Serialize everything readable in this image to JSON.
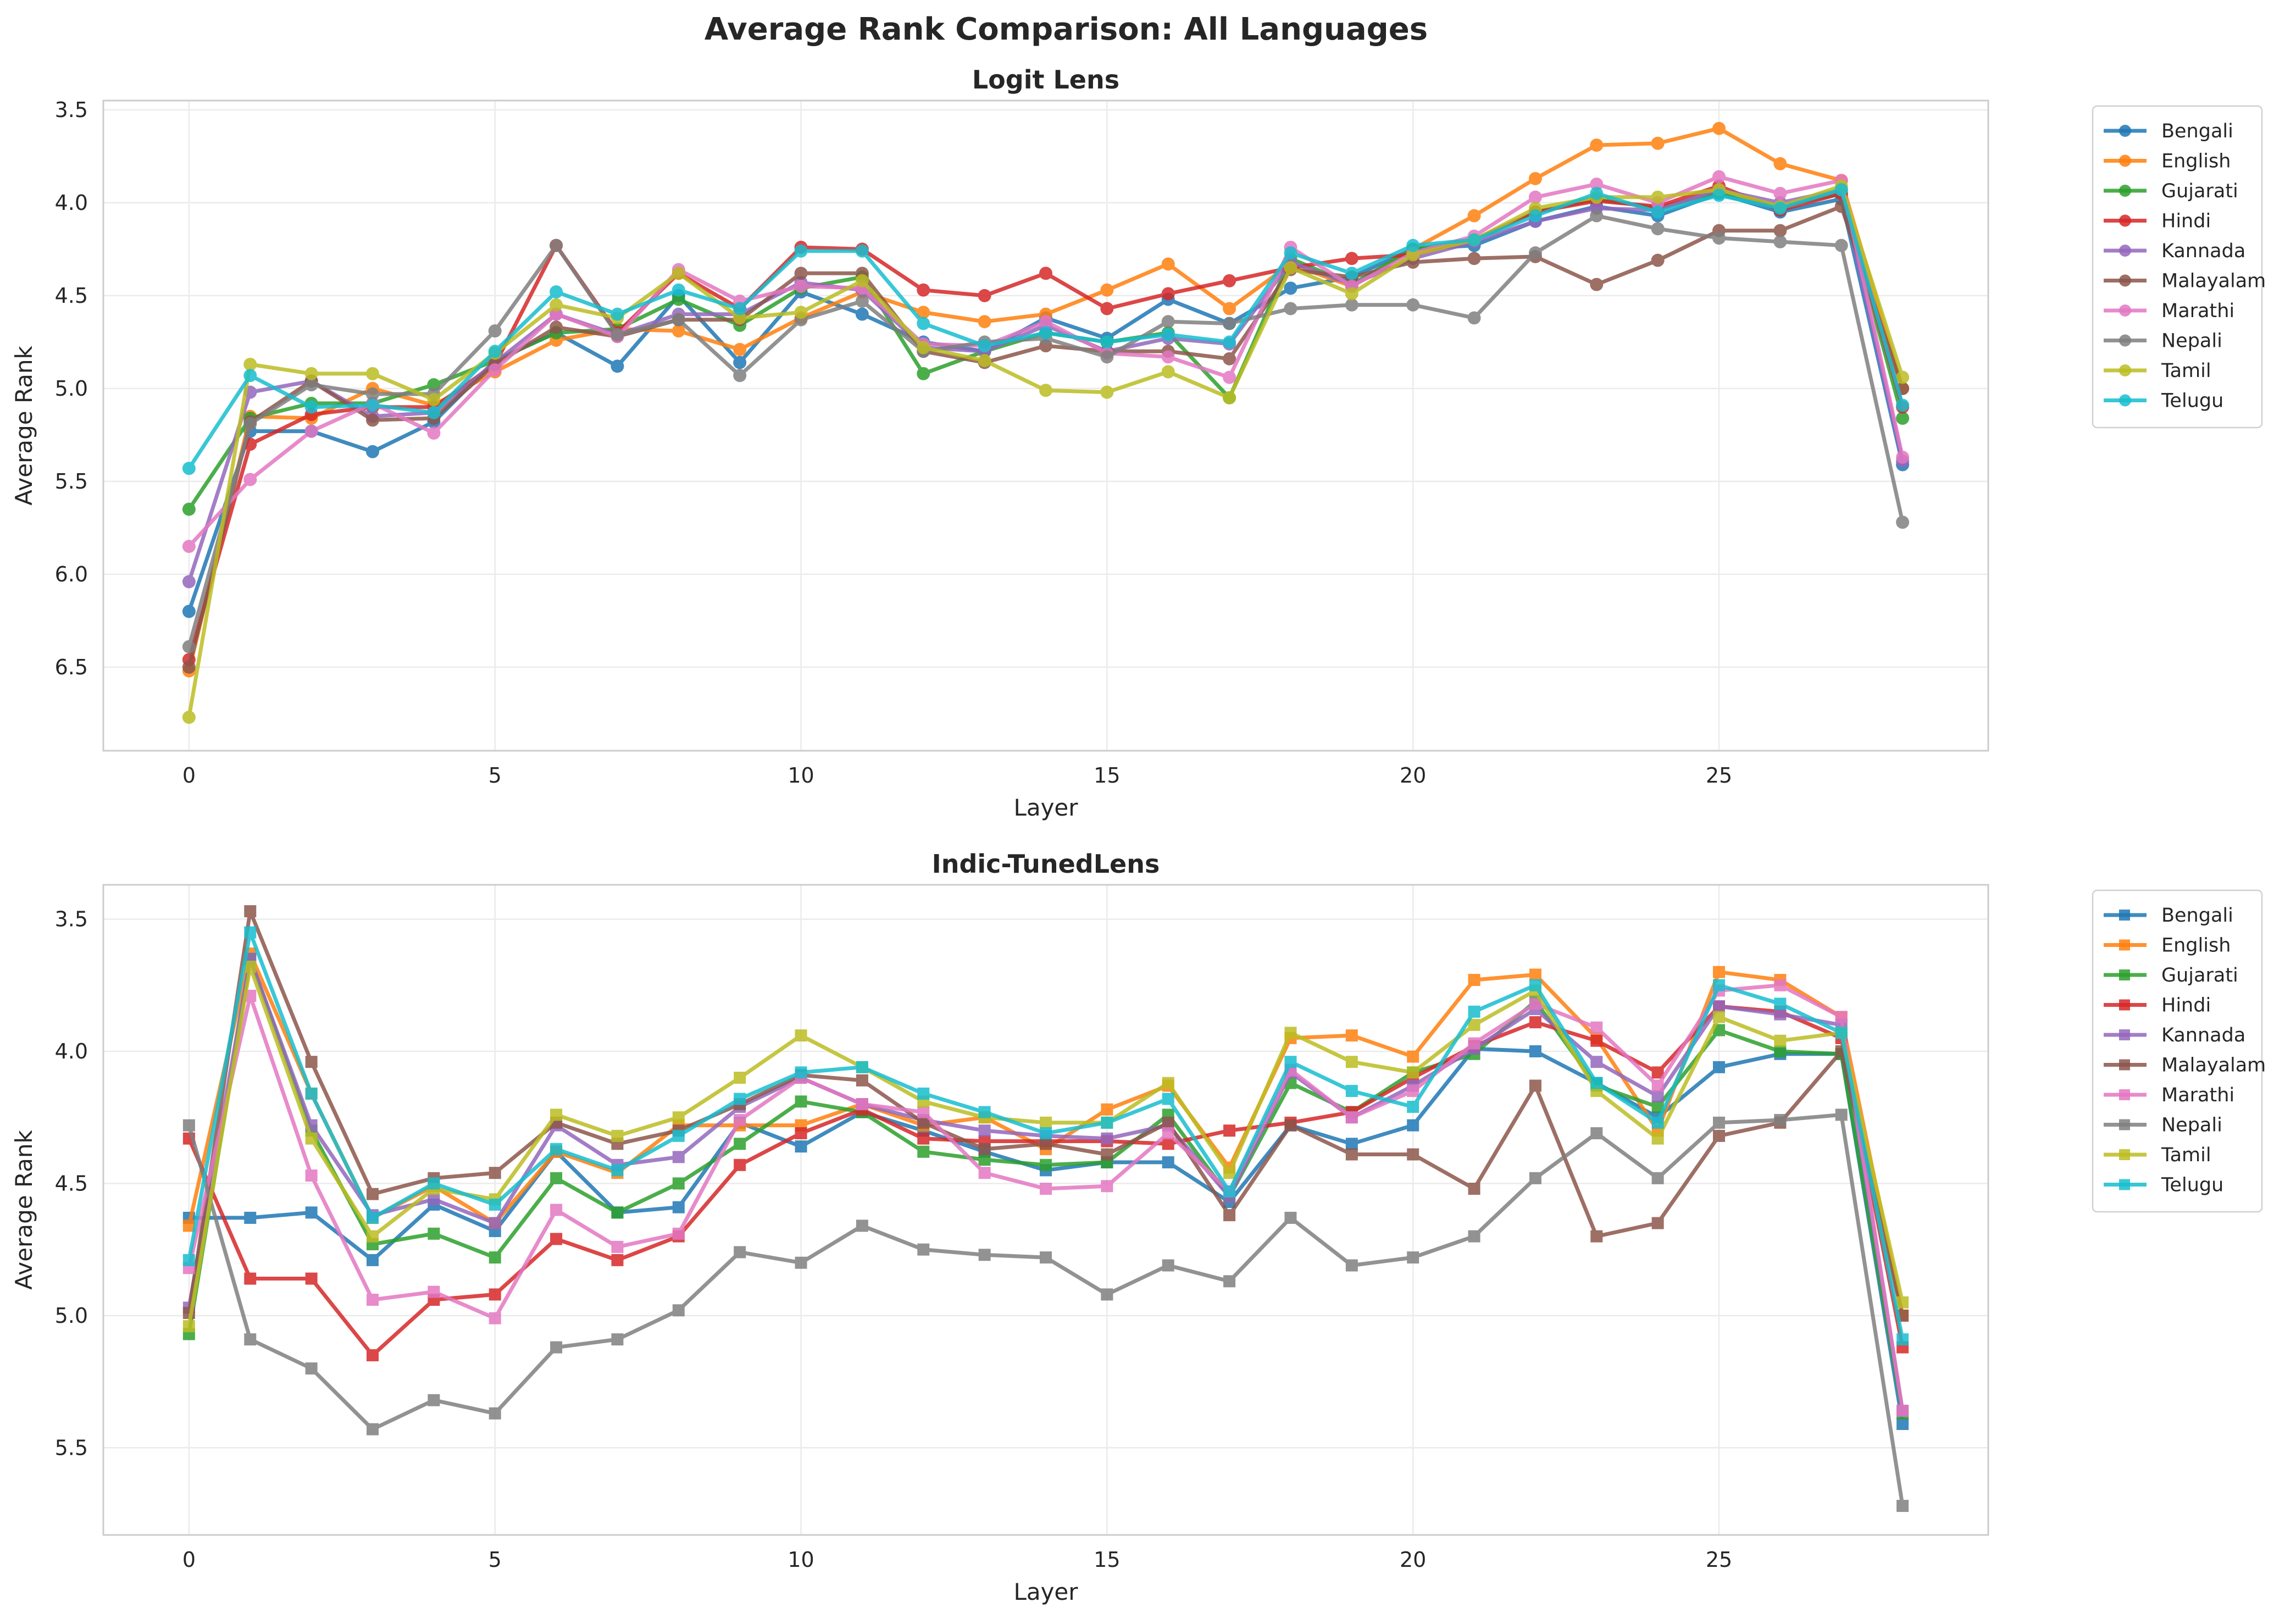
{
  "figure_title": "Average Rank Comparison: All Languages",
  "chart_data": [
    {
      "type": "line",
      "title": "Logit Lens",
      "xlabel": "Layer",
      "ylabel": "Average Rank",
      "marker": "circle",
      "x": [
        0,
        1,
        2,
        3,
        4,
        5,
        6,
        7,
        8,
        9,
        10,
        11,
        12,
        13,
        14,
        15,
        16,
        17,
        18,
        19,
        20,
        21,
        22,
        23,
        24,
        25,
        26,
        27,
        28
      ],
      "xlim": [
        -1.4,
        29.4
      ],
      "ylim": [
        6.95,
        3.45
      ],
      "y_inverted": true,
      "xticks": [
        0,
        5,
        10,
        15,
        20,
        25
      ],
      "yticks": [
        3.5,
        4.0,
        4.5,
        5.0,
        5.5,
        6.0,
        6.5
      ],
      "ytick_labels": [
        "3.5",
        "4.0",
        "4.5",
        "5.0",
        "5.5",
        "6.0",
        "6.5"
      ],
      "grid": true,
      "legend_position": "outside-right-top",
      "series": [
        {
          "name": "Bengali",
          "color": "#1f77b4",
          "values": [
            6.2,
            5.23,
            5.23,
            5.34,
            5.18,
            4.85,
            4.7,
            4.88,
            4.5,
            4.86,
            4.48,
            4.6,
            4.75,
            4.8,
            4.62,
            4.73,
            4.52,
            4.65,
            4.46,
            4.4,
            4.25,
            4.23,
            4.1,
            4.02,
            4.07,
            3.95,
            4.05,
            3.98,
            5.41
          ]
        },
        {
          "name": "English",
          "color": "#ff7f0e",
          "values": [
            6.52,
            5.15,
            5.16,
            5.0,
            5.09,
            4.91,
            4.74,
            4.68,
            4.69,
            4.79,
            4.62,
            4.48,
            4.59,
            4.64,
            4.6,
            4.47,
            4.33,
            4.57,
            4.33,
            4.45,
            4.25,
            4.07,
            3.87,
            3.69,
            3.68,
            3.6,
            3.79,
            3.88,
            5.0
          ]
        },
        {
          "name": "Gujarati",
          "color": "#2ca02c",
          "values": [
            5.65,
            5.16,
            5.08,
            5.08,
            4.98,
            4.85,
            4.7,
            4.68,
            4.52,
            4.66,
            4.46,
            4.4,
            4.92,
            4.8,
            4.7,
            4.75,
            4.7,
            5.05,
            4.3,
            4.44,
            4.25,
            4.2,
            4.05,
            3.98,
            4.03,
            3.94,
            4.02,
            3.95,
            5.16
          ]
        },
        {
          "name": "Hindi",
          "color": "#d62728",
          "values": [
            6.46,
            5.3,
            5.14,
            5.1,
            5.1,
            4.87,
            4.23,
            4.7,
            4.38,
            4.57,
            4.24,
            4.25,
            4.47,
            4.5,
            4.38,
            4.57,
            4.49,
            4.42,
            4.35,
            4.3,
            4.28,
            4.2,
            4.05,
            3.99,
            4.02,
            3.91,
            4.04,
            3.95,
            5.1
          ]
        },
        {
          "name": "Kannada",
          "color": "#9467bd",
          "values": [
            6.04,
            5.02,
            4.96,
            5.15,
            5.13,
            4.86,
            4.6,
            4.71,
            4.6,
            4.6,
            4.43,
            4.47,
            4.78,
            4.8,
            4.66,
            4.8,
            4.73,
            4.76,
            4.32,
            4.44,
            4.3,
            4.21,
            4.1,
            4.03,
            4.04,
            3.93,
            4.0,
            3.93,
            5.39
          ]
        },
        {
          "name": "Malayalam",
          "color": "#8c564b",
          "values": [
            6.5,
            5.18,
            4.96,
            5.17,
            5.16,
            4.87,
            4.67,
            4.72,
            4.63,
            4.63,
            4.38,
            4.38,
            4.8,
            4.86,
            4.77,
            4.8,
            4.8,
            4.84,
            4.36,
            4.4,
            4.32,
            4.3,
            4.29,
            4.44,
            4.31,
            4.15,
            4.15,
            4.02,
            5.0
          ]
        },
        {
          "name": "Marathi",
          "color": "#e377c2",
          "values": [
            5.85,
            5.49,
            5.23,
            5.08,
            5.24,
            4.9,
            4.6,
            4.72,
            4.36,
            4.53,
            4.45,
            4.46,
            4.76,
            4.77,
            4.64,
            4.81,
            4.83,
            4.94,
            4.24,
            4.45,
            4.27,
            4.18,
            3.97,
            3.9,
            4.0,
            3.86,
            3.95,
            3.88,
            5.37
          ]
        },
        {
          "name": "Nepali",
          "color": "#7f7f7f",
          "values": [
            6.39,
            5.19,
            4.98,
            5.03,
            5.03,
            4.69,
            4.23,
            4.71,
            4.63,
            4.93,
            4.63,
            4.53,
            4.8,
            4.75,
            4.73,
            4.83,
            4.64,
            4.65,
            4.57,
            4.55,
            4.55,
            4.62,
            4.27,
            4.07,
            4.14,
            4.19,
            4.21,
            4.23,
            5.72
          ]
        },
        {
          "name": "Tamil",
          "color": "#bcbd22",
          "values": [
            6.77,
            4.87,
            4.92,
            4.92,
            5.06,
            4.81,
            4.55,
            4.62,
            4.38,
            4.62,
            4.59,
            4.42,
            4.78,
            4.85,
            5.01,
            5.02,
            4.91,
            5.05,
            4.35,
            4.49,
            4.28,
            4.2,
            4.03,
            3.97,
            3.97,
            3.93,
            4.02,
            3.91,
            4.94
          ]
        },
        {
          "name": "Telugu",
          "color": "#17becf",
          "values": [
            5.43,
            4.93,
            5.1,
            5.09,
            5.13,
            4.8,
            4.48,
            4.6,
            4.47,
            4.57,
            4.26,
            4.26,
            4.65,
            4.77,
            4.7,
            4.75,
            4.71,
            4.75,
            4.27,
            4.38,
            4.23,
            4.2,
            4.07,
            3.95,
            4.05,
            3.96,
            4.03,
            3.93,
            5.09
          ]
        }
      ]
    },
    {
      "type": "line",
      "title": "Indic-TunedLens",
      "xlabel": "Layer",
      "ylabel": "Average Rank",
      "marker": "square",
      "x": [
        0,
        1,
        2,
        3,
        4,
        5,
        6,
        7,
        8,
        9,
        10,
        11,
        12,
        13,
        14,
        15,
        16,
        17,
        18,
        19,
        20,
        21,
        22,
        23,
        24,
        25,
        26,
        27,
        28
      ],
      "xlim": [
        -1.4,
        29.4
      ],
      "ylim": [
        5.83,
        3.37
      ],
      "y_inverted": true,
      "xticks": [
        0,
        5,
        10,
        15,
        20,
        25
      ],
      "yticks": [
        3.5,
        4.0,
        4.5,
        5.0,
        5.5
      ],
      "ytick_labels": [
        "3.5",
        "4.0",
        "4.5",
        "5.0",
        "5.5"
      ],
      "grid": true,
      "legend_position": "outside-right-top",
      "series": [
        {
          "name": "Bengali",
          "color": "#1f77b4",
          "values": [
            4.63,
            4.63,
            4.61,
            4.79,
            4.58,
            4.68,
            4.38,
            4.61,
            4.59,
            4.27,
            4.36,
            4.23,
            4.3,
            4.38,
            4.45,
            4.42,
            4.42,
            4.57,
            4.28,
            4.35,
            4.28,
            3.99,
            4.0,
            4.12,
            4.25,
            4.06,
            4.01,
            4.01,
            5.41
          ]
        },
        {
          "name": "English",
          "color": "#ff7f0e",
          "values": [
            4.66,
            3.63,
            4.16,
            4.63,
            4.51,
            4.65,
            4.38,
            4.46,
            4.28,
            4.28,
            4.28,
            4.2,
            4.28,
            4.25,
            4.37,
            4.22,
            4.13,
            4.44,
            3.95,
            3.94,
            4.02,
            3.73,
            3.71,
            3.95,
            4.3,
            3.7,
            3.73,
            3.87,
            5.0
          ]
        },
        {
          "name": "Gujarati",
          "color": "#2ca02c",
          "values": [
            5.07,
            3.65,
            4.3,
            4.73,
            4.69,
            4.78,
            4.48,
            4.61,
            4.5,
            4.35,
            4.19,
            4.23,
            4.38,
            4.41,
            4.43,
            4.42,
            4.24,
            4.55,
            4.12,
            4.23,
            4.08,
            4.01,
            3.81,
            4.13,
            4.21,
            3.92,
            4.0,
            4.01,
            5.37
          ]
        },
        {
          "name": "Hindi",
          "color": "#d62728",
          "values": [
            4.33,
            4.86,
            4.86,
            5.15,
            4.94,
            4.92,
            4.71,
            4.79,
            4.7,
            4.43,
            4.31,
            4.22,
            4.33,
            4.34,
            4.34,
            4.34,
            4.35,
            4.3,
            4.27,
            4.23,
            4.1,
            3.98,
            3.89,
            3.96,
            4.08,
            3.83,
            3.85,
            3.95,
            5.12
          ]
        },
        {
          "name": "Kannada",
          "color": "#9467bd",
          "values": [
            4.97,
            3.65,
            4.28,
            4.62,
            4.56,
            4.65,
            4.28,
            4.43,
            4.4,
            4.21,
            4.1,
            4.2,
            4.26,
            4.3,
            4.32,
            4.33,
            4.28,
            4.55,
            4.08,
            4.25,
            4.13,
            3.99,
            3.84,
            4.04,
            4.17,
            3.83,
            3.86,
            3.9,
            5.36
          ]
        },
        {
          "name": "Malayalam",
          "color": "#8c564b",
          "values": [
            4.99,
            3.47,
            4.04,
            4.54,
            4.48,
            4.46,
            4.27,
            4.35,
            4.3,
            4.2,
            4.09,
            4.11,
            4.27,
            4.37,
            4.35,
            4.39,
            4.27,
            4.62,
            4.28,
            4.39,
            4.39,
            4.52,
            4.13,
            4.7,
            4.65,
            4.32,
            4.27,
            4.0,
            5.0
          ]
        },
        {
          "name": "Marathi",
          "color": "#e377c2",
          "values": [
            4.82,
            3.79,
            4.47,
            4.94,
            4.91,
            5.01,
            4.6,
            4.74,
            4.69,
            4.26,
            4.1,
            4.2,
            4.23,
            4.46,
            4.52,
            4.51,
            4.31,
            4.53,
            4.07,
            4.25,
            4.15,
            3.97,
            3.82,
            3.91,
            4.13,
            3.77,
            3.75,
            3.87,
            5.36
          ]
        },
        {
          "name": "Nepali",
          "color": "#7f7f7f",
          "values": [
            4.28,
            5.09,
            5.2,
            5.43,
            5.32,
            5.37,
            5.12,
            5.09,
            4.98,
            4.76,
            4.8,
            4.66,
            4.75,
            4.77,
            4.78,
            4.92,
            4.81,
            4.87,
            4.63,
            4.81,
            4.78,
            4.7,
            4.48,
            4.31,
            4.48,
            4.27,
            4.26,
            4.24,
            5.72
          ]
        },
        {
          "name": "Tamil",
          "color": "#bcbd22",
          "values": [
            5.04,
            3.68,
            4.33,
            4.7,
            4.52,
            4.56,
            4.24,
            4.32,
            4.25,
            4.1,
            3.94,
            4.06,
            4.19,
            4.25,
            4.27,
            4.27,
            4.12,
            4.46,
            3.93,
            4.04,
            4.08,
            3.9,
            3.77,
            4.15,
            4.33,
            3.87,
            3.96,
            3.93,
            4.95
          ]
        },
        {
          "name": "Telugu",
          "color": "#17becf",
          "values": [
            4.79,
            3.55,
            4.16,
            4.63,
            4.5,
            4.58,
            4.37,
            4.45,
            4.32,
            4.18,
            4.08,
            4.06,
            4.16,
            4.23,
            4.31,
            4.27,
            4.18,
            4.53,
            4.04,
            4.15,
            4.21,
            3.85,
            3.75,
            4.12,
            4.27,
            3.75,
            3.82,
            3.93,
            5.09
          ]
        }
      ]
    }
  ]
}
